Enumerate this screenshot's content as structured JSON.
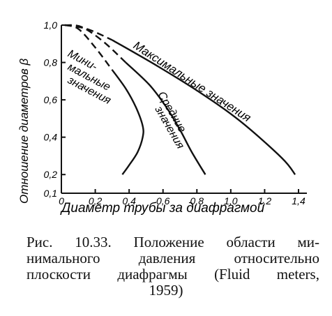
{
  "chart_data": {
    "type": "line",
    "ylabel": "Отношение диаметров β",
    "xlabel": "Диаметр трубы за диафрагмой",
    "x_ticks": [
      "0",
      "0,2",
      "0,4",
      "0,6",
      "0,8",
      "1,0",
      "1,2",
      "1,4"
    ],
    "y_ticks": [
      "1,0",
      "0,8",
      "0,6",
      "0,4",
      "0,2",
      "0,1"
    ],
    "xlim": [
      0,
      1.45
    ],
    "ylim": [
      0.1,
      1.0
    ],
    "grid": false,
    "series": [
      {
        "name": "Минимальные значения",
        "points": [
          [
            0.02,
            1.0
          ],
          [
            0.1,
            0.98
          ],
          [
            0.2,
            0.88
          ],
          [
            0.3,
            0.76
          ],
          [
            0.38,
            0.66
          ],
          [
            0.44,
            0.56
          ],
          [
            0.48,
            0.46
          ],
          [
            0.48,
            0.4
          ],
          [
            0.45,
            0.32
          ],
          [
            0.4,
            0.25
          ],
          [
            0.36,
            0.2
          ]
        ],
        "dashed_until_y": 0.85
      },
      {
        "name": "Средние значения",
        "points": [
          [
            0.02,
            1.0
          ],
          [
            0.12,
            0.99
          ],
          [
            0.25,
            0.91
          ],
          [
            0.38,
            0.8
          ],
          [
            0.52,
            0.68
          ],
          [
            0.62,
            0.56
          ],
          [
            0.7,
            0.44
          ],
          [
            0.77,
            0.32
          ],
          [
            0.85,
            0.2
          ]
        ],
        "dashed_until_y": 0.9
      },
      {
        "name": "Максимальные значения",
        "points": [
          [
            0.02,
            1.0
          ],
          [
            0.15,
            0.98
          ],
          [
            0.3,
            0.92
          ],
          [
            0.55,
            0.79
          ],
          [
            0.8,
            0.65
          ],
          [
            1.05,
            0.49
          ],
          [
            1.3,
            0.29
          ],
          [
            1.38,
            0.2
          ]
        ],
        "dashed_until_y": 0.93
      }
    ],
    "curve_labels": [
      [
        "Мини-",
        "мальные",
        "значения"
      ],
      [
        "Средние",
        "значения"
      ],
      [
        "Максимальные значения"
      ]
    ]
  },
  "caption": {
    "line1": [
      "Рис.",
      "10.33.",
      "Положение",
      "области",
      "ми-"
    ],
    "line2": [
      "нимального",
      "давления",
      "относительно"
    ],
    "line3": [
      "плоскости",
      "диафрагмы",
      "(Fluid",
      "meters,"
    ],
    "line4": "1959)"
  }
}
